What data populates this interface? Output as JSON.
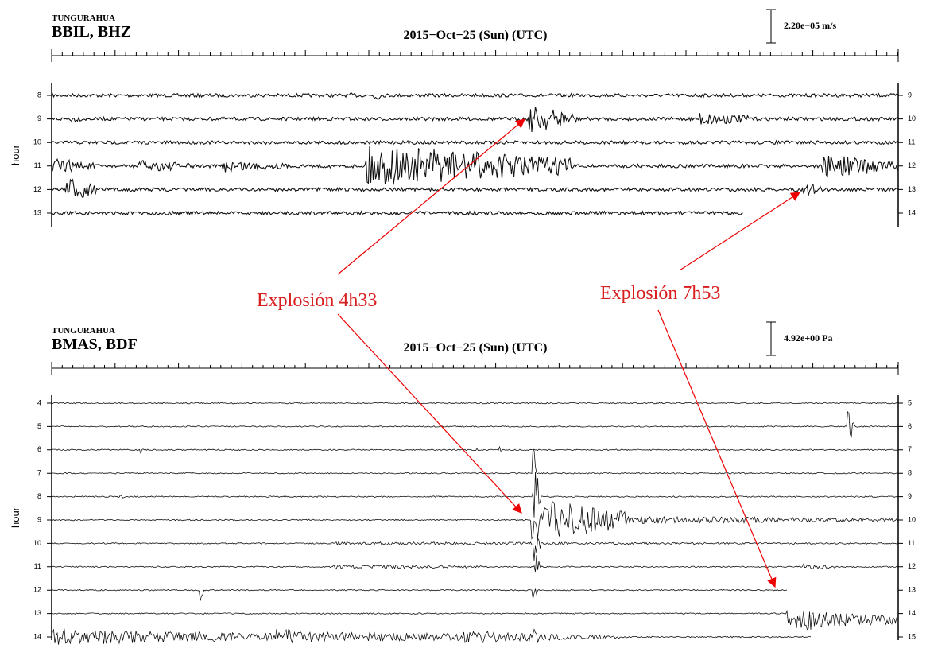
{
  "panels": [
    {
      "station": "TUNGURAHUA",
      "code": "BBIL, BHZ",
      "date": "2015−Oct−25 (Sun) (UTC)",
      "scale": "2.20e−05 m/s",
      "axis_label": "hour",
      "left_hours": [
        8,
        9,
        10,
        11,
        12,
        13
      ],
      "right_hours": [
        9,
        10,
        11,
        12,
        13,
        14
      ]
    },
    {
      "station": "TUNGURAHUA",
      "code": "BMAS, BDF",
      "date": "2015−Oct−25 (Sun) (UTC)",
      "scale": "4.92e+00 Pa",
      "axis_label": "hour",
      "left_hours": [
        4,
        5,
        6,
        7,
        8,
        9,
        10,
        11,
        12,
        13,
        14
      ],
      "right_hours": [
        5,
        6,
        7,
        8,
        9,
        10,
        11,
        12,
        13,
        14,
        15
      ]
    }
  ],
  "annotations": [
    "Explosión 4h33",
    "Explosión 7h53"
  ]
}
